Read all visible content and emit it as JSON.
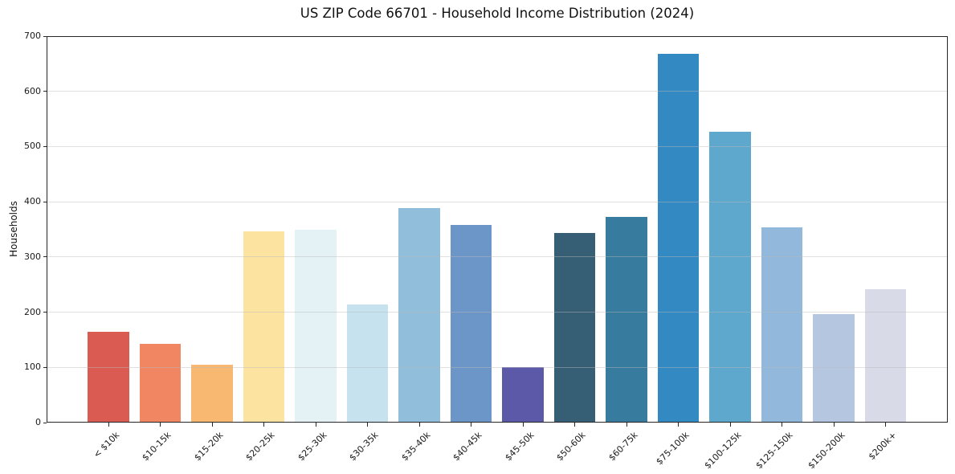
{
  "figure": {
    "background": "#ffffff"
  },
  "chart_data": {
    "type": "bar",
    "title": "US ZIP Code 66701 - Household Income Distribution (2024)",
    "xlabel": "",
    "ylabel": "Households",
    "categories": [
      "< $10k",
      "$10-15k",
      "$15-20k",
      "$20-25k",
      "$25-30k",
      "$30-35k",
      "$35-40k",
      "$40-45k",
      "$45-50k",
      "$50-60k",
      "$60-75k",
      "$75-100k",
      "$100-125k",
      "$125-150k",
      "$150-200k",
      "$200k+"
    ],
    "values": [
      164,
      143,
      105,
      347,
      350,
      214,
      389,
      358,
      101,
      344,
      372,
      668,
      527,
      353,
      196,
      241
    ],
    "bar_colors": [
      "#d95b52",
      "#f08662",
      "#f9b871",
      "#fde3a0",
      "#e4f1f5",
      "#c5e2ee",
      "#90bedb",
      "#6d96c8",
      "#5c5aa8",
      "#365f75",
      "#377b9e",
      "#3389c1",
      "#5ea8cd",
      "#92b8dc",
      "#b5c6e0",
      "#d9dae7"
    ],
    "ylim": [
      0,
      700
    ],
    "yticks": [
      0,
      100,
      200,
      300,
      400,
      500,
      600,
      700
    ],
    "grid": "horizontal-light",
    "legend": "none",
    "x_tick_rotation_deg": 45,
    "colors": {
      "spine": "#262626",
      "grid_over_bars": "rgba(187,187,187,0.45)",
      "text": "#1a1a1a",
      "background": "#ffffff"
    }
  }
}
